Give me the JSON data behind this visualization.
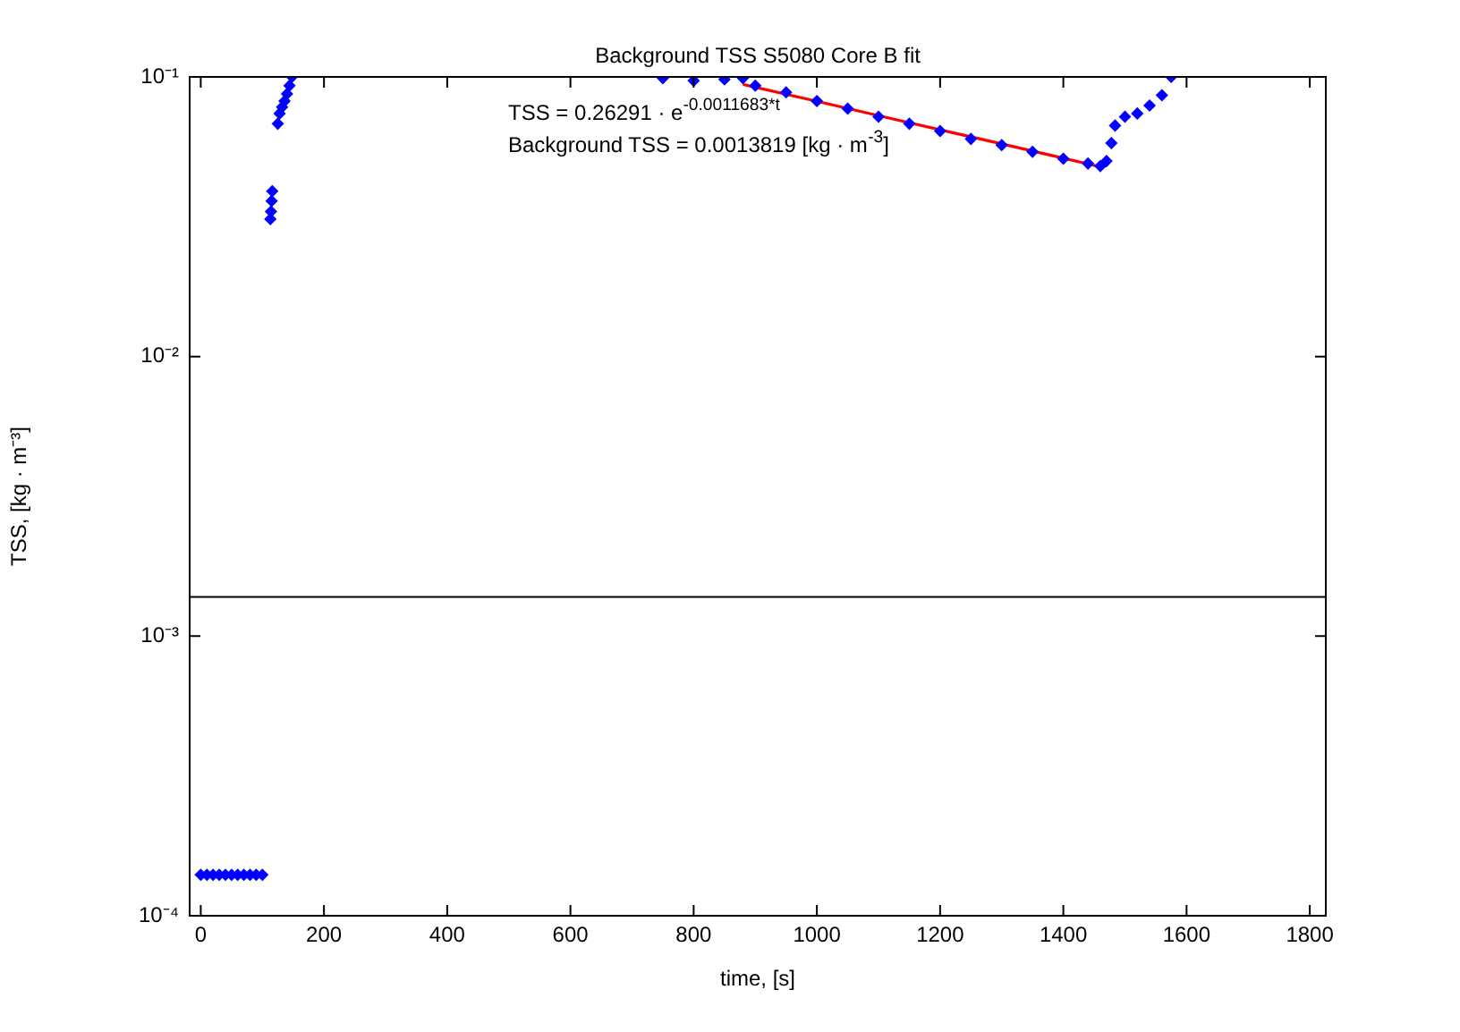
{
  "chart_data": {
    "type": "scatter",
    "title": "Background TSS S5080 Core B fit",
    "xlabel": "time, [s]",
    "ylabel": "TSS, [kg · m⁻³]",
    "log": "y",
    "grid": false,
    "legend": false,
    "marker": "diamond",
    "xlim": [
      -18,
      1826
    ],
    "xticks": [
      0,
      200,
      400,
      600,
      800,
      1000,
      1200,
      1400,
      1600,
      1800
    ],
    "ylim": [
      0.0001,
      0.1
    ],
    "yticks": [
      {
        "value": 0.0001,
        "label": "10⁻⁴"
      },
      {
        "value": 0.001,
        "label": "10⁻³"
      },
      {
        "value": 0.01,
        "label": "10⁻²"
      },
      {
        "value": 0.1,
        "label": "10⁻¹"
      }
    ],
    "series": [
      {
        "color": "#0000ff",
        "x": [
          0,
          10,
          20,
          30,
          40,
          50,
          60,
          70,
          80,
          90,
          100,
          113,
          114,
          115,
          116,
          125,
          128,
          132,
          136,
          140,
          144,
          148,
          750,
          800,
          850,
          880,
          900,
          950,
          1000,
          1050,
          1100,
          1150,
          1200,
          1250,
          1300,
          1350,
          1400,
          1440,
          1460,
          1470,
          1478,
          1484,
          1500,
          1520,
          1540,
          1560,
          1575
        ],
        "values": [
          0.00014,
          0.00014,
          0.00014,
          0.00014,
          0.00014,
          0.00014,
          0.00014,
          0.00014,
          0.00014,
          0.00014,
          0.00014,
          0.031,
          0.033,
          0.036,
          0.039,
          0.068,
          0.074,
          0.078,
          0.082,
          0.087,
          0.093,
          0.1,
          0.099,
          0.097,
          0.098,
          0.099,
          0.093,
          0.088,
          0.082,
          0.077,
          0.072,
          0.068,
          0.064,
          0.06,
          0.057,
          0.054,
          0.051,
          0.049,
          0.048,
          0.05,
          0.058,
          0.067,
          0.072,
          0.074,
          0.079,
          0.086,
          0.1
        ]
      },
      {
        "type": "line",
        "color": "#ff0000",
        "marker": "none",
        "x": [
          880,
          1000,
          1100,
          1200,
          1300,
          1400,
          1460
        ],
        "values": [
          0.094,
          0.0818,
          0.0727,
          0.0647,
          0.0576,
          0.0512,
          0.0477
        ]
      }
    ],
    "ref_lines": [
      {
        "axis": "y",
        "value": 0.0013819,
        "label": null,
        "color": "#000000"
      }
    ],
    "annotations": [
      "TSS = 0.26291 · e$^{-0.0011683*t}$",
      "Background TSS = 0.0013819 [kg · m$^{-3}$]"
    ]
  }
}
